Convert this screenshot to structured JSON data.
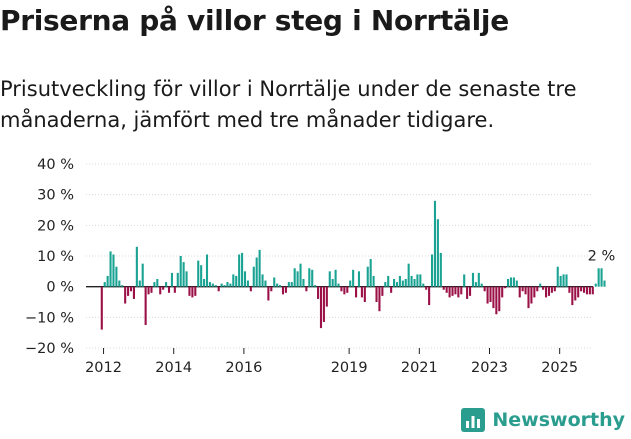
{
  "header": {
    "title": "Priserna på villor steg i Norrtälje",
    "subtitle": "Prisutveckling för villor i Norrtälje under de senaste tre månaderna, jämfört med tre månader tidigare."
  },
  "brand": {
    "name": "Newsworthy",
    "logo_icon": "newsworthy-chart-icon"
  },
  "colors": {
    "positive": "#1aa393",
    "negative": "#9b1147",
    "axis": "#222222",
    "grid": "#d9d9d9",
    "brand": "#2a9d8f"
  },
  "chart_data": {
    "type": "bar",
    "title": "Priserna på villor steg i Norrtälje",
    "xlabel": "",
    "ylabel": "",
    "ylim": [
      -20,
      40
    ],
    "yticks": [
      -20,
      -10,
      0,
      10,
      20,
      30,
      40
    ],
    "ytick_labels": [
      "−20 %",
      "−10 %",
      "0 %",
      "10 %",
      "20 %",
      "30 %",
      "40 %"
    ],
    "xticks": [
      2012,
      2014,
      2016,
      2019,
      2021,
      2023,
      2025
    ],
    "xlim": [
      2011.5,
      2025.95
    ],
    "last_label": "2 %",
    "series": [
      {
        "name": "Prisutveckling",
        "start": 2011.95,
        "step": 0.0833,
        "values": [
          -14,
          1.5,
          3.5,
          11.5,
          10.5,
          6.5,
          2,
          0.5,
          -5.5,
          -3,
          -1.5,
          -4,
          13,
          2,
          7.5,
          -12.5,
          -2.5,
          -2,
          1.5,
          2.5,
          -2.5,
          -1,
          1.5,
          -2,
          4.5,
          -2,
          4.5,
          10,
          8,
          5,
          -3,
          -3.5,
          -3,
          8.5,
          7,
          2.5,
          10.5,
          1.5,
          1,
          0.5,
          -1.5,
          1,
          0.5,
          1.5,
          1,
          4,
          3.5,
          10.5,
          11,
          5,
          2,
          -1.5,
          6.5,
          9.5,
          12,
          4,
          2,
          -4.5,
          -1.5,
          3,
          1,
          0.5,
          -2.5,
          -2,
          1.5,
          1.5,
          6,
          5,
          7.5,
          2.5,
          -1.5,
          6,
          5.5,
          0.5,
          -4,
          -13.5,
          -11.5,
          -6.5,
          5,
          2.5,
          5.5,
          1,
          -1.5,
          -2.5,
          -2,
          2,
          5.5,
          -3.5,
          5,
          -3.5,
          -5,
          6.5,
          9,
          3.5,
          -5,
          -8,
          -3,
          1.5,
          3.5,
          -2,
          2.5,
          1.5,
          3.5,
          2,
          2.5,
          7.5,
          3.5,
          2.5,
          4,
          4,
          1,
          -1,
          -6,
          10.5,
          28,
          22,
          11,
          -1,
          -2,
          -3.5,
          -3,
          -2.5,
          -3.5,
          -2.5,
          4,
          -4,
          -3,
          4.5,
          1.5,
          4.5,
          1,
          -1.5,
          -5.5,
          -5,
          -7,
          -9,
          -8,
          -3.5,
          -0.5,
          2.5,
          3,
          3,
          2,
          -3.5,
          -1.5,
          -2.5,
          -7,
          -5.5,
          -3.5,
          -1.5,
          1,
          -1,
          -3.5,
          -3,
          -2,
          -1.5,
          6.5,
          3.5,
          4,
          4,
          -2,
          -6,
          -4.5,
          -3.5,
          -1.5,
          -2,
          -2.5,
          -2.5,
          -2.5,
          1,
          6,
          6,
          2
        ]
      }
    ]
  }
}
